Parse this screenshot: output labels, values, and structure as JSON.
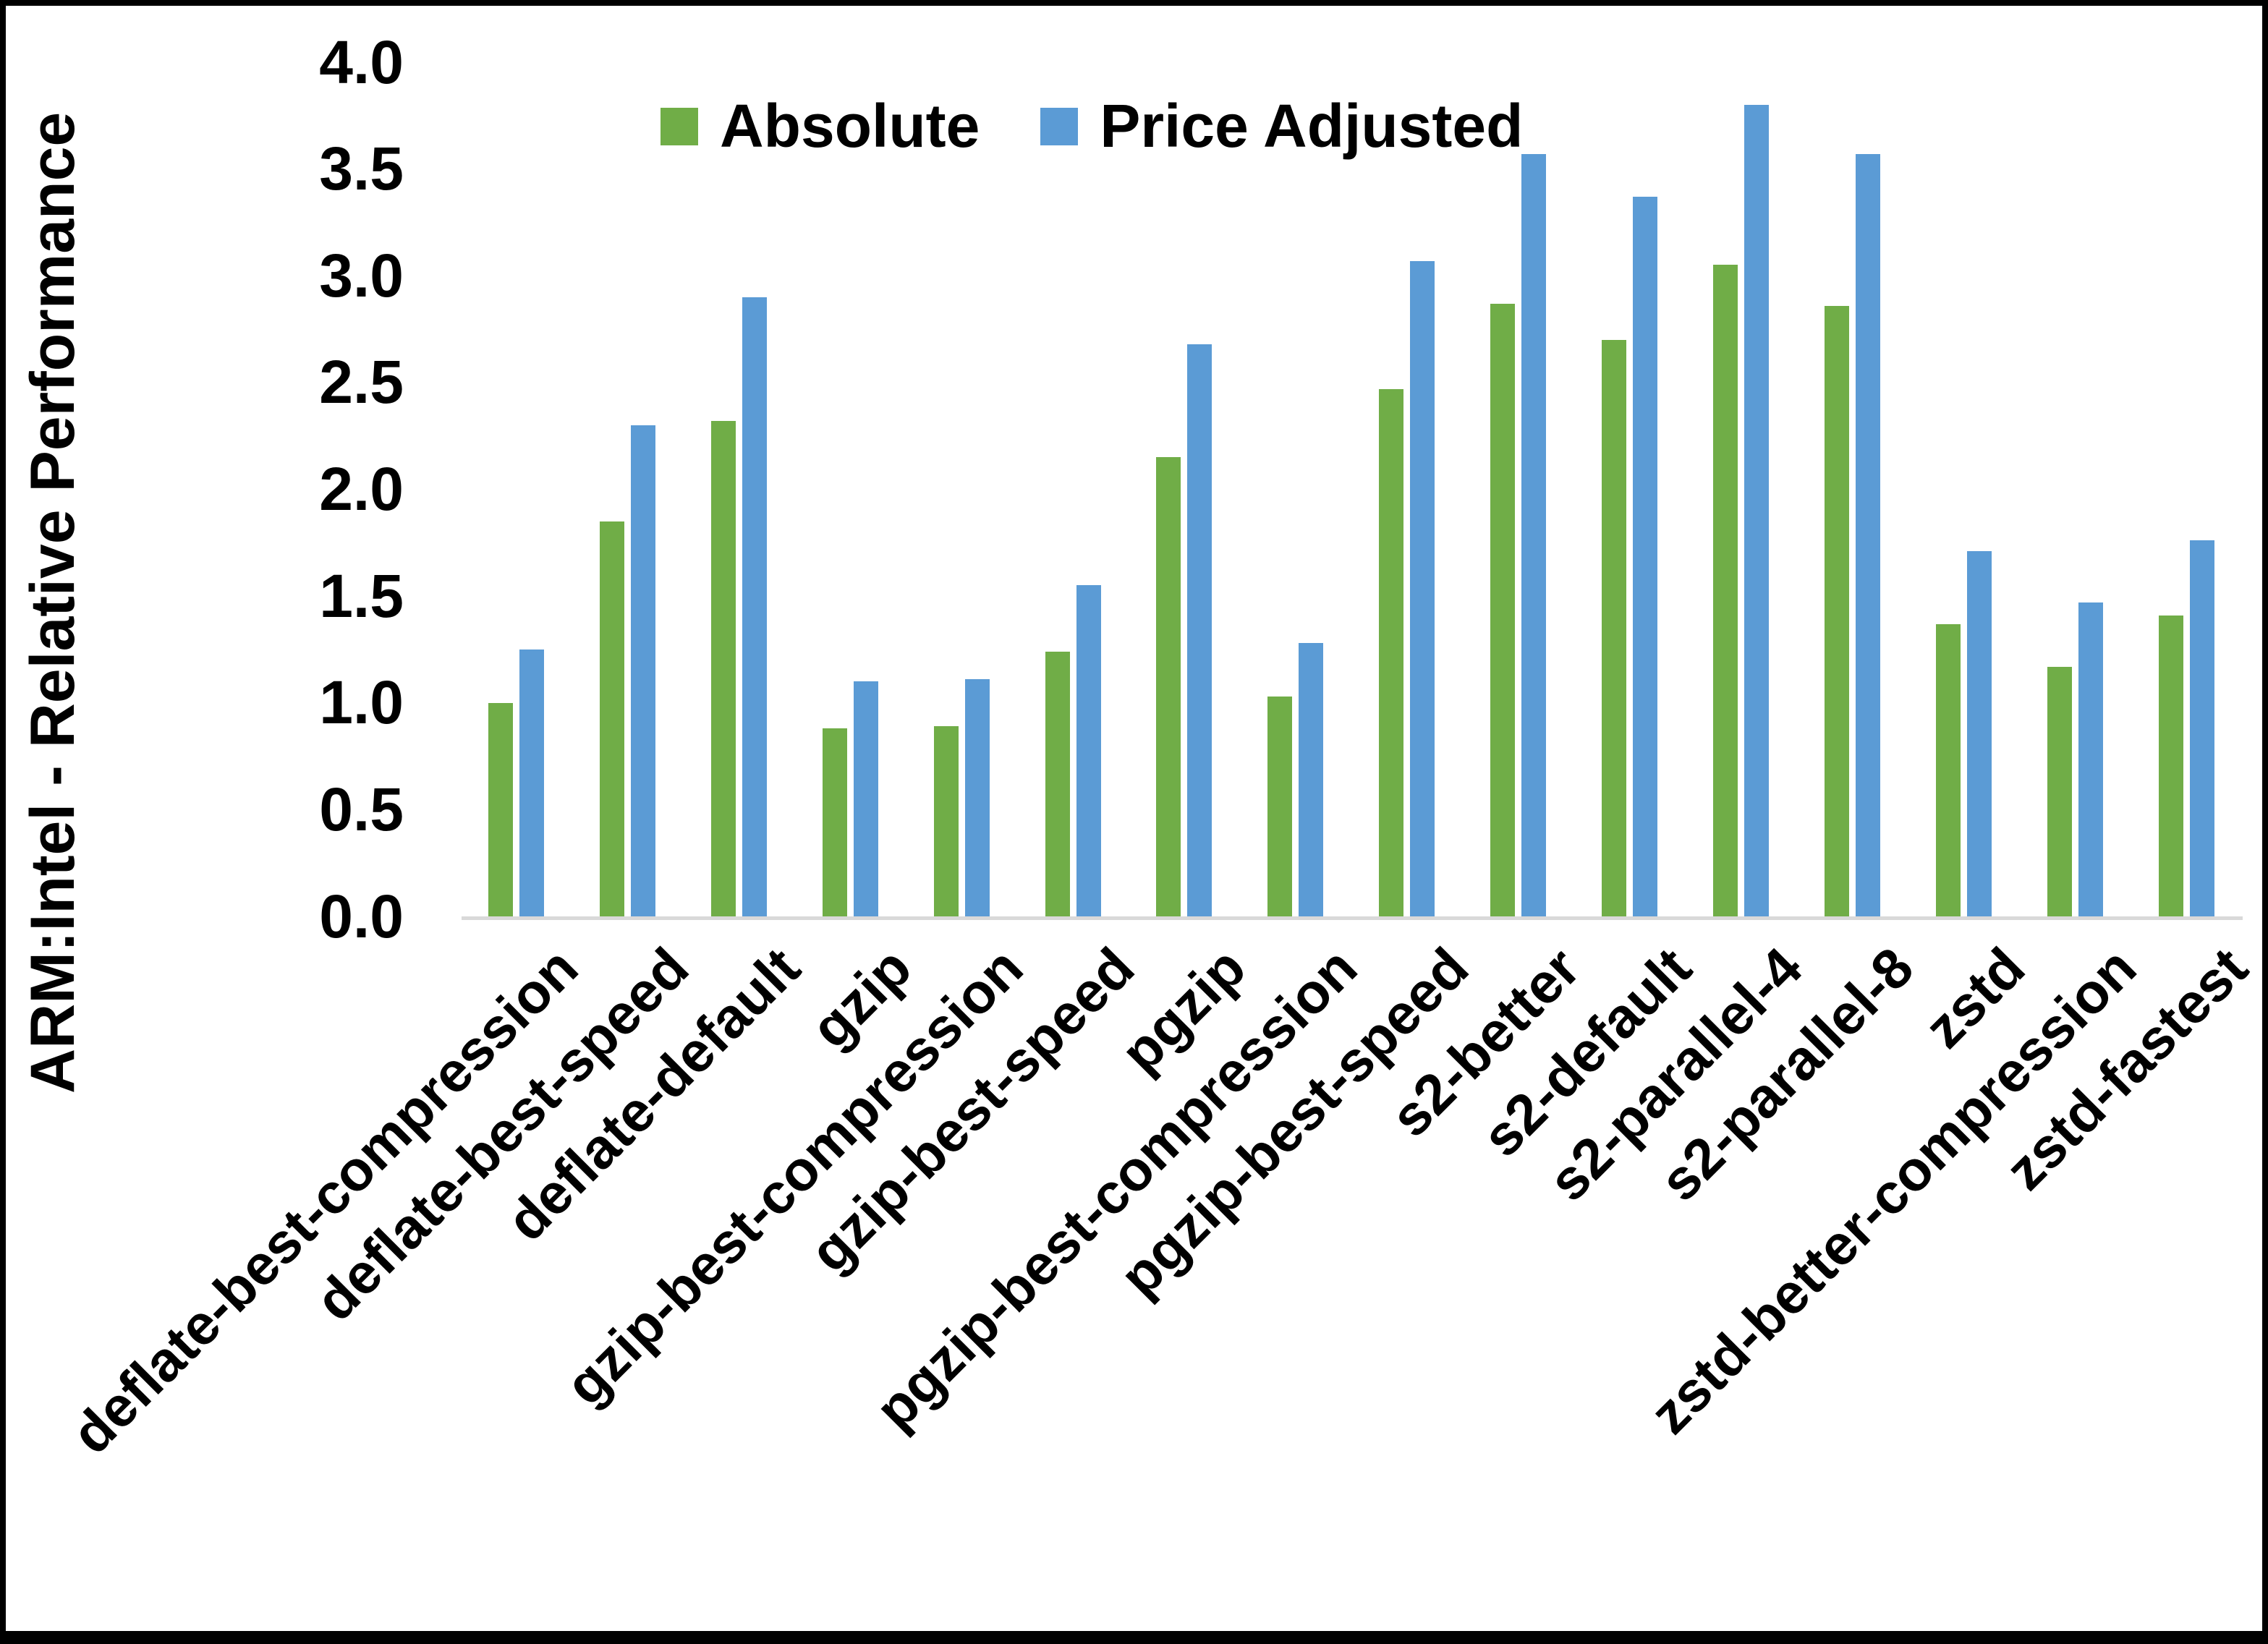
{
  "chart_data": {
    "type": "bar",
    "title": "",
    "ylabel": "ARM:Intel - Relative Performance",
    "xlabel": "",
    "ylim": [
      0.0,
      4.0
    ],
    "yticks": [
      "0.0",
      "0.5",
      "1.0",
      "1.5",
      "2.0",
      "2.5",
      "3.0",
      "3.5",
      "4.0"
    ],
    "grid": false,
    "legend_position": "top-center",
    "axis_line_color": "#D9D9D9",
    "categories": [
      "deflate-best-compression",
      "deflate-best-speed",
      "deflate-default",
      "gzip",
      "gzip-best-compression",
      "gzip-best-speed",
      "pgzip",
      "pgzip-best-compression",
      "pgzip-best-speed",
      "s2-better",
      "s2-default",
      "s2-parallel-4",
      "s2-parallel-8",
      "zstd",
      "zstd-better-compression",
      "zstd-fastest"
    ],
    "series": [
      {
        "name": "Absolute",
        "color": "#70AD47",
        "values": [
          1.0,
          1.85,
          2.32,
          0.88,
          0.89,
          1.24,
          2.15,
          1.03,
          2.47,
          2.87,
          2.7,
          3.05,
          2.86,
          1.37,
          1.17,
          1.41
        ]
      },
      {
        "name": "Price Adjusted",
        "color": "#5B9BD5",
        "values": [
          1.25,
          2.3,
          2.9,
          1.1,
          1.11,
          1.55,
          2.68,
          1.28,
          3.07,
          3.57,
          3.37,
          3.8,
          3.57,
          1.71,
          1.47,
          1.76
        ]
      }
    ]
  }
}
